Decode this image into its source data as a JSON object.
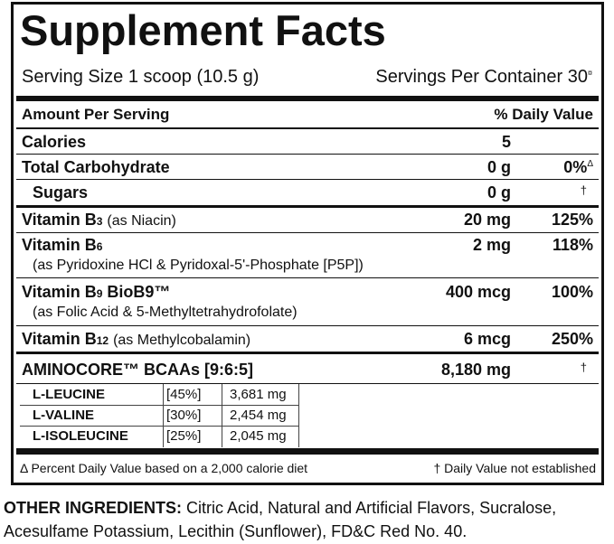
{
  "header": {
    "title": "Supplement Facts",
    "serving_size": "Serving Size 1 scoop (10.5 g)",
    "servings_per_container": "Servings Per Container 30",
    "servings_mark": "¤"
  },
  "columns": {
    "amount": "Amount Per Serving",
    "dv": "% Daily Value"
  },
  "rows": [
    {
      "name": "Calories",
      "amount": "5"
    },
    {
      "name": "Total Carbohydrate",
      "amount": "0 g",
      "dv": "0%",
      "dv_mark": "Δ"
    },
    {
      "name": "Sugars",
      "amount": "0 g",
      "dv": "†"
    },
    {
      "name": "Vitamin B",
      "sub": "3",
      "note": "(as Niacin)",
      "amount": "20 mg",
      "dv": "125%"
    },
    {
      "name": "Vitamin B",
      "sub": "6",
      "note": "(as Pyridoxine HCl & Pyridoxal-5'-Phosphate [P5P])",
      "amount": "2 mg",
      "dv": "118%"
    },
    {
      "name": "Vitamin B",
      "sub": "9",
      "name_after": "BioB9™",
      "note": "(as Folic Acid & 5-Methyltetrahydrofolate)",
      "amount": "400 mcg",
      "dv": "100%"
    },
    {
      "name": "Vitamin B",
      "sub": "12",
      "note": "(as Methylcobalamin)",
      "amount": "6 mcg",
      "dv": "250%"
    },
    {
      "name": "AMINOCORE™ BCAAs [9:6:5]",
      "amount": "8,180 mg",
      "dv": "†"
    }
  ],
  "blend": [
    {
      "name": "L-LEUCINE",
      "ratio": "[45%]",
      "amount": "3,681 mg"
    },
    {
      "name": "L-VALINE",
      "ratio": "[30%]",
      "amount": "2,454 mg"
    },
    {
      "name": "L-ISOLEUCINE",
      "ratio": "[25%]",
      "amount": "2,045 mg"
    }
  ],
  "footnotes": {
    "left": "Δ Percent Daily Value based on a 2,000 calorie diet",
    "right": "† Daily Value not established"
  },
  "other_ingredients": {
    "label": "OTHER INGREDIENTS:",
    "text": "Citric Acid, Natural and Artificial Flavors, Sucralose, Acesulfame Potassium, Lecithin (Sunflower), FD&C Red No. 40."
  }
}
